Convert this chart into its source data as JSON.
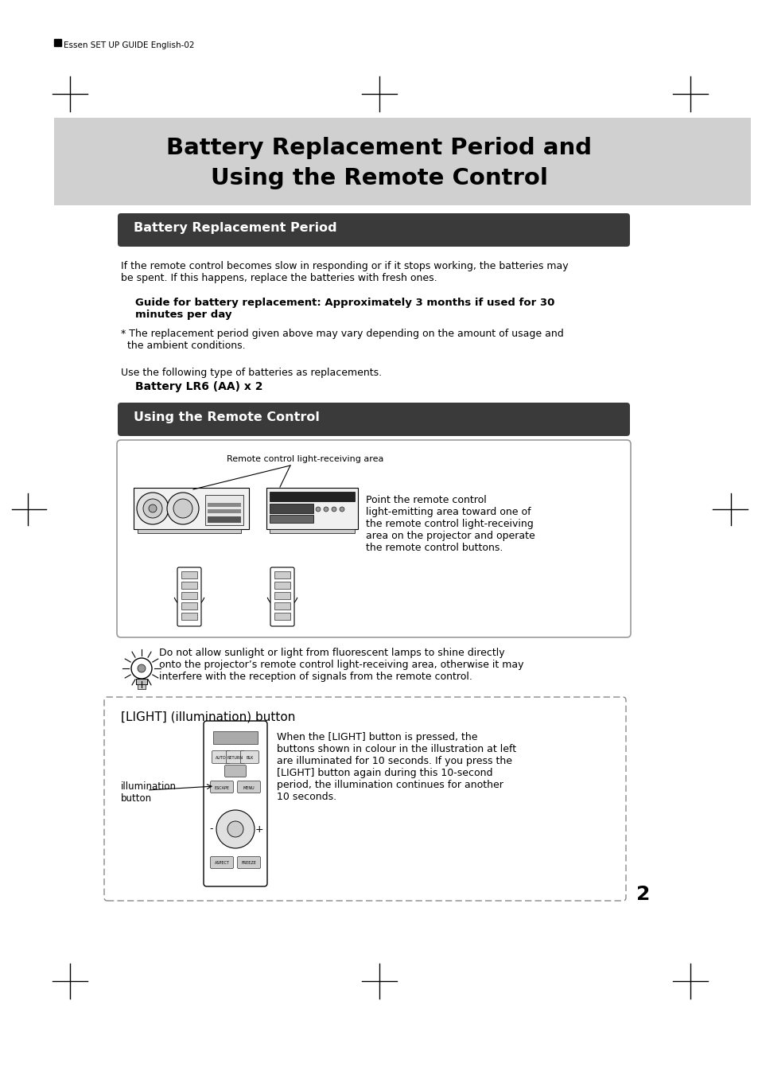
{
  "page_bg": "#ffffff",
  "header_text": "Essen SET UP GUIDE English-02",
  "main_title_line1": "Battery Replacement Period and",
  "main_title_line2": "Using the Remote Control",
  "main_title_bg": "#d0d0d0",
  "section1_title": "Battery Replacement Period",
  "section1_title_bg": "#3a3a3a",
  "section1_title_color": "#ffffff",
  "para1": "If the remote control becomes slow in responding or if it stops working, the batteries may\nbe spent. If this happens, replace the batteries with fresh ones.",
  "bold_text": "Guide for battery replacement: Approximately 3 months if used for 30\nminutes per day",
  "note_text": "* The replacement period given above may vary depending on the amount of usage and\n  the ambient conditions.",
  "use_text": "Use the following type of batteries as replacements.",
  "battery_text": "Battery LR6 (AA) x 2",
  "section2_title": "Using the Remote Control",
  "section2_title_bg": "#3a3a3a",
  "section2_title_color": "#ffffff",
  "diagram_label": "Remote control light-receiving area",
  "diagram_desc": "Point the remote control\nlight-emitting area toward one of\nthe remote control light-receiving\narea on the projector and operate\nthe remote control buttons.",
  "warning_text": "Do not allow sunlight or light from fluorescent lamps to shine directly\nonto the projector’s remote control light-receiving area, otherwise it may\ninterfere with the reception of signals from the remote control.",
  "light_box_title": "[LIGHT] (illumination) button",
  "illumination_label": "illumination\nbutton",
  "light_desc": "When the [LIGHT] button is pressed, the\nbuttons shown in colour in the illustration at left\nare illuminated for 10 seconds. If you press the\n[LIGHT] button again during this 10-second\nperiod, the illumination continues for another\n10 seconds.",
  "page_number": "2"
}
